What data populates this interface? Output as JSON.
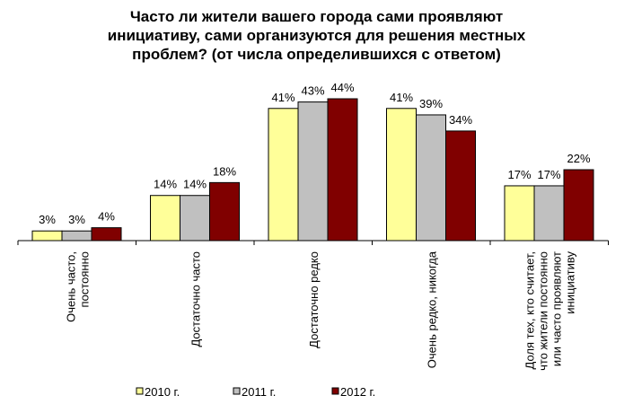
{
  "chart_data": {
    "type": "bar",
    "title_lines": [
      "Часто ли жители вашего города сами проявляют",
      "инициативу, сами организуются для решения местных",
      "проблем? (от числа определившихся с ответом)"
    ],
    "categories": [
      [
        "Очень часто,",
        "постоянно"
      ],
      [
        "Достаточно часто"
      ],
      [
        "Достаточно редко"
      ],
      [
        "Очень редко,  никогда"
      ],
      [
        "Доля тех,  кто считает,",
        "что жители постоянно",
        "или часто проявляют",
        "инициативу"
      ]
    ],
    "series": [
      {
        "name": "2010 г.",
        "color": "#FFFF99",
        "values": [
          3,
          14,
          41,
          41,
          17
        ]
      },
      {
        "name": "2011 г.",
        "color": "#C0C0C0",
        "values": [
          3,
          14,
          43,
          39,
          17
        ]
      },
      {
        "name": "2012 г.",
        "color": "#800000",
        "values": [
          4,
          18,
          44,
          34,
          22
        ]
      }
    ],
    "value_suffix": "%",
    "ylim": [
      0,
      44
    ],
    "legend": "bottom",
    "grid": false
  }
}
